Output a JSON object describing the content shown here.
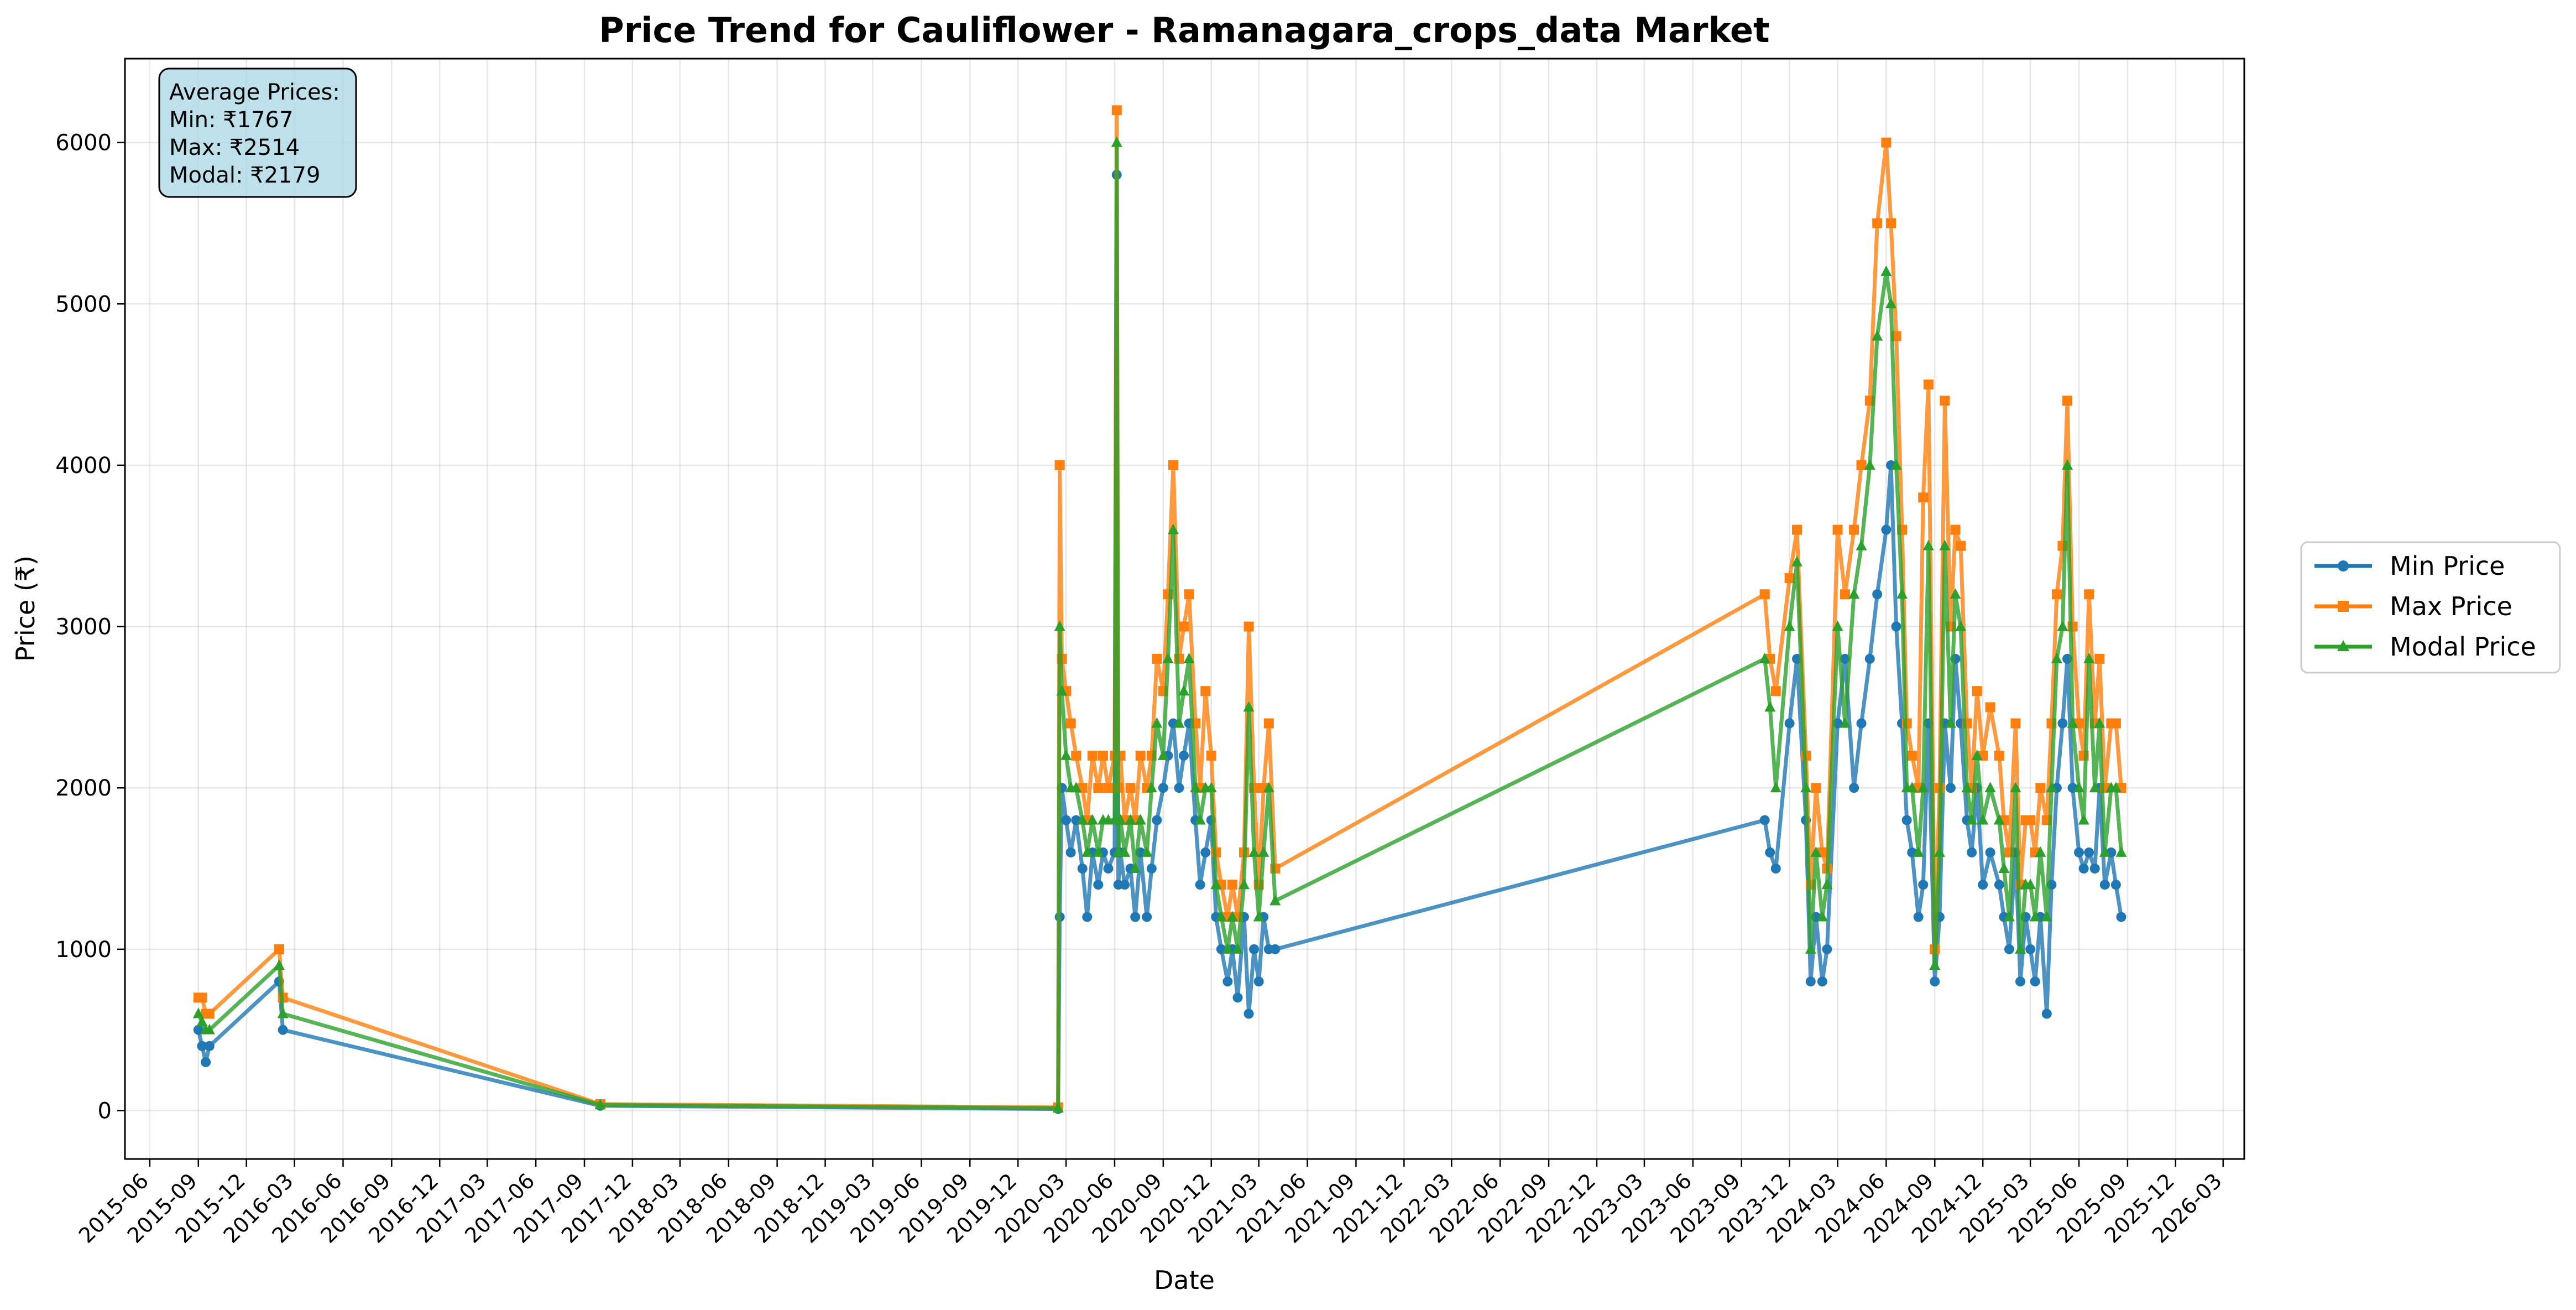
{
  "chart_data": {
    "type": "line",
    "title": "Price Trend for Cauliflower - Ramanagara_crops_data Market",
    "xlabel": "Date",
    "ylabel": "Price (₹)",
    "x_axis_type": "date",
    "xlim": [
      "2015-04-15",
      "2026-04-10"
    ],
    "ylim": [
      -300,
      6520
    ],
    "yticks": [
      0,
      1000,
      2000,
      3000,
      4000,
      5000,
      6000
    ],
    "xticks": [
      "2015-06",
      "2015-09",
      "2015-12",
      "2016-03",
      "2016-06",
      "2016-09",
      "2016-12",
      "2017-03",
      "2017-06",
      "2017-09",
      "2017-12",
      "2018-03",
      "2018-06",
      "2018-09",
      "2018-12",
      "2019-03",
      "2019-06",
      "2019-09",
      "2019-12",
      "2020-03",
      "2020-06",
      "2020-09",
      "2020-12",
      "2021-03",
      "2021-06",
      "2021-09",
      "2021-12",
      "2022-03",
      "2022-06",
      "2022-09",
      "2022-12",
      "2023-03",
      "2023-06",
      "2023-09",
      "2023-12",
      "2024-03",
      "2024-06",
      "2024-09",
      "2024-12",
      "2025-03",
      "2025-06",
      "2025-09",
      "2025-12",
      "2026-03"
    ],
    "grid": true,
    "legend_position": "right-outside",
    "annotation": {
      "lines": [
        "Average Prices:",
        "Min: ₹1767",
        "Max: ₹2514",
        "Modal: ₹2179"
      ],
      "background": "#add8e6"
    },
    "series": [
      {
        "name": "Min Price",
        "color": "#1f77b4",
        "marker": "circle",
        "x": [
          "2015-09-01",
          "2015-09-08",
          "2015-09-15",
          "2015-09-22",
          "2016-02-01",
          "2016-02-08",
          "2017-10-01",
          "2020-02-15",
          "2020-02-18",
          "2020-02-22",
          "2020-03-01",
          "2020-03-10",
          "2020-03-20",
          "2020-04-01",
          "2020-04-10",
          "2020-04-20",
          "2020-05-01",
          "2020-05-10",
          "2020-05-20",
          "2020-06-01",
          "2020-06-05",
          "2020-06-08",
          "2020-06-12",
          "2020-06-20",
          "2020-07-01",
          "2020-07-10",
          "2020-07-20",
          "2020-08-01",
          "2020-08-10",
          "2020-08-20",
          "2020-09-01",
          "2020-09-10",
          "2020-09-20",
          "2020-10-01",
          "2020-10-10",
          "2020-10-20",
          "2020-11-01",
          "2020-11-10",
          "2020-11-20",
          "2020-12-01",
          "2020-12-10",
          "2020-12-20",
          "2021-01-01",
          "2021-01-10",
          "2021-01-20",
          "2021-02-01",
          "2021-02-10",
          "2021-02-20",
          "2021-03-01",
          "2021-03-10",
          "2021-03-20",
          "2021-04-01",
          "2023-10-15",
          "2023-10-25",
          "2023-11-05",
          "2023-12-01",
          "2023-12-15",
          "2024-01-01",
          "2024-01-10",
          "2024-01-20",
          "2024-02-01",
          "2024-02-10",
          "2024-03-01",
          "2024-03-15",
          "2024-04-01",
          "2024-04-15",
          "2024-05-01",
          "2024-05-15",
          "2024-06-01",
          "2024-06-10",
          "2024-06-20",
          "2024-07-01",
          "2024-07-10",
          "2024-07-20",
          "2024-08-01",
          "2024-08-10",
          "2024-08-20",
          "2024-09-01",
          "2024-09-10",
          "2024-09-20",
          "2024-10-01",
          "2024-10-10",
          "2024-10-20",
          "2024-11-01",
          "2024-11-10",
          "2024-11-20",
          "2024-12-01",
          "2024-12-15",
          "2025-01-01",
          "2025-01-10",
          "2025-01-20",
          "2025-02-01",
          "2025-02-10",
          "2025-02-20",
          "2025-03-01",
          "2025-03-10",
          "2025-03-20",
          "2025-04-01",
          "2025-04-10",
          "2025-04-20",
          "2025-05-01",
          "2025-05-10",
          "2025-05-20",
          "2025-06-01",
          "2025-06-10",
          "2025-06-20",
          "2025-07-01",
          "2025-07-10",
          "2025-07-20",
          "2025-08-01",
          "2025-08-10",
          "2025-08-20"
        ],
        "y": [
          500,
          400,
          300,
          400,
          800,
          500,
          30,
          10,
          1200,
          2000,
          1800,
          1600,
          1800,
          1500,
          1200,
          1600,
          1400,
          1600,
          1500,
          1600,
          5800,
          1400,
          1600,
          1400,
          1500,
          1200,
          1600,
          1200,
          1500,
          1800,
          2000,
          2200,
          2400,
          2000,
          2200,
          2400,
          1800,
          1400,
          1600,
          1800,
          1200,
          1000,
          800,
          1000,
          700,
          1200,
          600,
          1000,
          800,
          1200,
          1000,
          1000,
          1800,
          1600,
          1500,
          2400,
          2800,
          1800,
          800,
          1200,
          800,
          1000,
          2400,
          2800,
          2000,
          2400,
          2800,
          3200,
          3600,
          4000,
          3000,
          2400,
          1800,
          1600,
          1200,
          1400,
          2400,
          800,
          1200,
          2400,
          2000,
          2800,
          2400,
          1800,
          1600,
          2000,
          1400,
          1600,
          1400,
          1200,
          1000,
          1600,
          800,
          1200,
          1000,
          800,
          1200,
          600,
          1400,
          2000,
          2400,
          2800,
          2000,
          1600,
          1500,
          1600,
          1500,
          2000,
          1400,
          1600,
          1400,
          1200
        ]
      },
      {
        "name": "Max Price",
        "color": "#ff7f0e",
        "marker": "square",
        "x": [
          "2015-09-01",
          "2015-09-08",
          "2015-09-15",
          "2015-09-22",
          "2016-02-01",
          "2016-02-08",
          "2017-10-01",
          "2020-02-15",
          "2020-02-18",
          "2020-02-22",
          "2020-03-01",
          "2020-03-10",
          "2020-03-20",
          "2020-04-01",
          "2020-04-10",
          "2020-04-20",
          "2020-05-01",
          "2020-05-10",
          "2020-05-20",
          "2020-06-01",
          "2020-06-05",
          "2020-06-08",
          "2020-06-12",
          "2020-06-20",
          "2020-07-01",
          "2020-07-10",
          "2020-07-20",
          "2020-08-01",
          "2020-08-10",
          "2020-08-20",
          "2020-09-01",
          "2020-09-10",
          "2020-09-20",
          "2020-10-01",
          "2020-10-10",
          "2020-10-20",
          "2020-11-01",
          "2020-11-10",
          "2020-11-20",
          "2020-12-01",
          "2020-12-10",
          "2020-12-20",
          "2021-01-01",
          "2021-01-10",
          "2021-01-20",
          "2021-02-01",
          "2021-02-10",
          "2021-02-20",
          "2021-03-01",
          "2021-03-10",
          "2021-03-20",
          "2021-04-01",
          "2023-10-15",
          "2023-10-25",
          "2023-11-05",
          "2023-12-01",
          "2023-12-15",
          "2024-01-01",
          "2024-01-10",
          "2024-01-20",
          "2024-02-01",
          "2024-02-10",
          "2024-03-01",
          "2024-03-15",
          "2024-04-01",
          "2024-04-15",
          "2024-05-01",
          "2024-05-15",
          "2024-06-01",
          "2024-06-10",
          "2024-06-20",
          "2024-07-01",
          "2024-07-10",
          "2024-07-20",
          "2024-08-01",
          "2024-08-10",
          "2024-08-20",
          "2024-09-01",
          "2024-09-10",
          "2024-09-20",
          "2024-10-01",
          "2024-10-10",
          "2024-10-20",
          "2024-11-01",
          "2024-11-10",
          "2024-11-20",
          "2024-12-01",
          "2024-12-15",
          "2025-01-01",
          "2025-01-10",
          "2025-01-20",
          "2025-02-01",
          "2025-02-10",
          "2025-02-20",
          "2025-03-01",
          "2025-03-10",
          "2025-03-20",
          "2025-04-01",
          "2025-04-10",
          "2025-04-20",
          "2025-05-01",
          "2025-05-10",
          "2025-05-20",
          "2025-06-01",
          "2025-06-10",
          "2025-06-20",
          "2025-07-01",
          "2025-07-10",
          "2025-07-20",
          "2025-08-01",
          "2025-08-10",
          "2025-08-20"
        ],
        "y": [
          700,
          700,
          600,
          600,
          1000,
          700,
          40,
          20,
          4000,
          2800,
          2600,
          2400,
          2200,
          2000,
          1800,
          2200,
          2000,
          2200,
          2000,
          2200,
          6200,
          2000,
          2200,
          1800,
          2000,
          1800,
          2200,
          2000,
          2200,
          2800,
          2600,
          3200,
          4000,
          2800,
          3000,
          3200,
          2400,
          2000,
          2600,
          2200,
          1600,
          1400,
          1200,
          1400,
          1200,
          1600,
          3000,
          2000,
          1400,
          2000,
          2400,
          1500,
          3200,
          2800,
          2600,
          3300,
          3600,
          2200,
          1400,
          2000,
          1600,
          1500,
          3600,
          3200,
          3600,
          4000,
          4400,
          5500,
          6000,
          5500,
          4800,
          3600,
          2400,
          2200,
          2000,
          3800,
          4500,
          1000,
          2000,
          4400,
          3000,
          3600,
          3500,
          2400,
          2000,
          2600,
          2200,
          2500,
          2200,
          1800,
          1600,
          2400,
          1400,
          1800,
          1800,
          1600,
          2000,
          1800,
          2400,
          3200,
          3500,
          4400,
          3000,
          2400,
          2200,
          3200,
          2400,
          2800,
          2000,
          2400,
          2400,
          2000
        ]
      },
      {
        "name": "Modal Price",
        "color": "#2ca02c",
        "marker": "triangle",
        "x": [
          "2015-09-01",
          "2015-09-08",
          "2015-09-15",
          "2015-09-22",
          "2016-02-01",
          "2016-02-08",
          "2017-10-01",
          "2020-02-15",
          "2020-02-18",
          "2020-02-22",
          "2020-03-01",
          "2020-03-10",
          "2020-03-20",
          "2020-04-01",
          "2020-04-10",
          "2020-04-20",
          "2020-05-01",
          "2020-05-10",
          "2020-05-20",
          "2020-06-01",
          "2020-06-05",
          "2020-06-08",
          "2020-06-12",
          "2020-06-20",
          "2020-07-01",
          "2020-07-10",
          "2020-07-20",
          "2020-08-01",
          "2020-08-10",
          "2020-08-20",
          "2020-09-01",
          "2020-09-10",
          "2020-09-20",
          "2020-10-01",
          "2020-10-10",
          "2020-10-20",
          "2020-11-01",
          "2020-11-10",
          "2020-11-20",
          "2020-12-01",
          "2020-12-10",
          "2020-12-20",
          "2021-01-01",
          "2021-01-10",
          "2021-01-20",
          "2021-02-01",
          "2021-02-10",
          "2021-02-20",
          "2021-03-01",
          "2021-03-10",
          "2021-03-20",
          "2021-04-01",
          "2023-10-15",
          "2023-10-25",
          "2023-11-05",
          "2023-12-01",
          "2023-12-15",
          "2024-01-01",
          "2024-01-10",
          "2024-01-20",
          "2024-02-01",
          "2024-02-10",
          "2024-03-01",
          "2024-03-15",
          "2024-04-01",
          "2024-04-15",
          "2024-05-01",
          "2024-05-15",
          "2024-06-01",
          "2024-06-10",
          "2024-06-20",
          "2024-07-01",
          "2024-07-10",
          "2024-07-20",
          "2024-08-01",
          "2024-08-10",
          "2024-08-20",
          "2024-09-01",
          "2024-09-10",
          "2024-09-20",
          "2024-10-01",
          "2024-10-10",
          "2024-10-20",
          "2024-11-01",
          "2024-11-10",
          "2024-11-20",
          "2024-12-01",
          "2024-12-15",
          "2025-01-01",
          "2025-01-10",
          "2025-01-20",
          "2025-02-01",
          "2025-02-10",
          "2025-02-20",
          "2025-03-01",
          "2025-03-10",
          "2025-03-20",
          "2025-04-01",
          "2025-04-10",
          "2025-04-20",
          "2025-05-01",
          "2025-05-10",
          "2025-05-20",
          "2025-06-01",
          "2025-06-10",
          "2025-06-20",
          "2025-07-01",
          "2025-07-10",
          "2025-07-20",
          "2025-08-01",
          "2025-08-10",
          "2025-08-20"
        ],
        "y": [
          600,
          550,
          500,
          500,
          900,
          600,
          35,
          15,
          3000,
          2600,
          2200,
          2000,
          2000,
          1800,
          1600,
          1800,
          1600,
          1800,
          1800,
          1800,
          6000,
          1600,
          1800,
          1600,
          1800,
          1500,
          1800,
          1600,
          2000,
          2400,
          2200,
          2800,
          3600,
          2400,
          2600,
          2800,
          2000,
          1800,
          2000,
          2000,
          1400,
          1200,
          1000,
          1200,
          1000,
          1400,
          2500,
          1600,
          1200,
          1600,
          2000,
          1300,
          2800,
          2500,
          2000,
          3000,
          3400,
          2000,
          1000,
          1600,
          1200,
          1400,
          3000,
          2400,
          3200,
          3500,
          4000,
          4800,
          5200,
          5000,
          4000,
          3200,
          2000,
          2000,
          1600,
          2000,
          3500,
          900,
          1600,
          3500,
          2400,
          3200,
          3000,
          2000,
          1800,
          2200,
          1800,
          2000,
          1800,
          1500,
          1200,
          2000,
          1000,
          1400,
          1400,
          1200,
          1600,
          1200,
          2000,
          2800,
          3000,
          4000,
          2400,
          2000,
          1800,
          2800,
          2000,
          2400,
          1600,
          2000,
          2000,
          1600
        ]
      }
    ]
  }
}
